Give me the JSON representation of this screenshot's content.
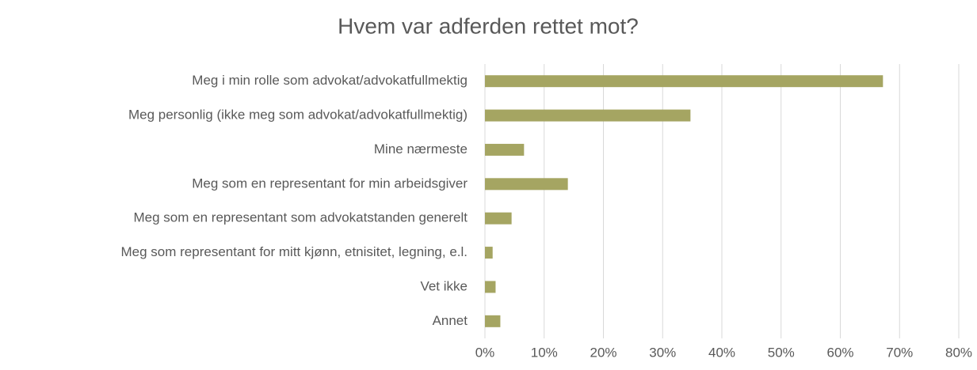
{
  "chart_data": {
    "type": "barh",
    "title": "Hvem var adferden rettet mot?",
    "categories": [
      "Meg i min rolle som advokat/advokatfullmektig",
      "Meg personlig (ikke meg som advokat/advokatfullmektig)",
      "Mine nærmeste",
      "Meg som en representant for min arbeidsgiver",
      "Meg som en representant som advokatstanden generelt",
      "Meg som representant for mitt kjønn, etnisitet, legning, e.l.",
      "Vet ikke",
      "Annet"
    ],
    "values": [
      67.2,
      34.7,
      6.6,
      14.0,
      4.5,
      1.3,
      1.8,
      2.6
    ],
    "color": "#a5a562",
    "xlim": [
      0,
      80
    ],
    "xticks": [
      {
        "value": 0,
        "label": "0%"
      },
      {
        "value": 10,
        "label": "10%"
      },
      {
        "value": 20,
        "label": "20%"
      },
      {
        "value": 30,
        "label": "30%"
      },
      {
        "value": 40,
        "label": "40%"
      },
      {
        "value": 50,
        "label": "50%"
      },
      {
        "value": 60,
        "label": "60%"
      },
      {
        "value": 70,
        "label": "70%"
      },
      {
        "value": 80,
        "label": "80%"
      }
    ],
    "grid": true
  }
}
